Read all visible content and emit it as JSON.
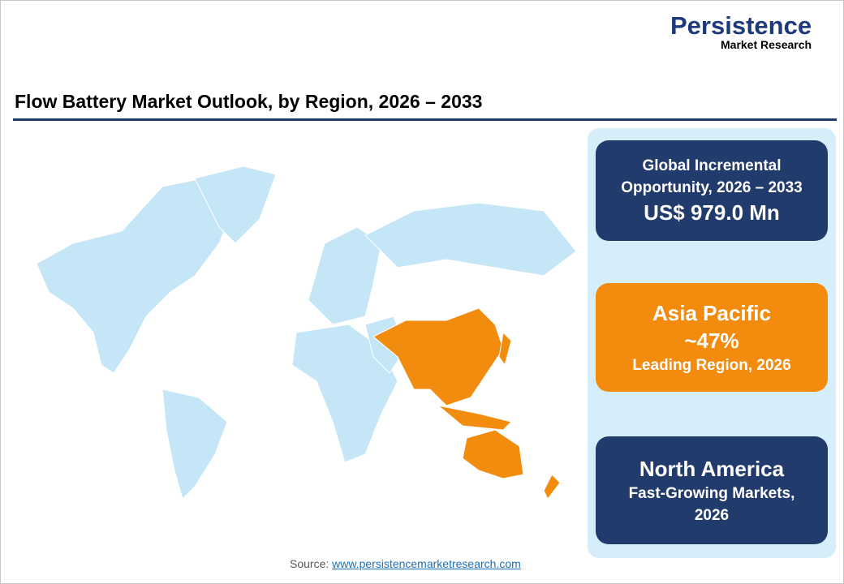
{
  "logo": {
    "primary": "Persistence",
    "secondary": "Market Research"
  },
  "title": "Flow Battery Market Outlook, by Region, 2026 – 2033",
  "map": {
    "base_color": "#c5e6f7",
    "highlight_color": "#f28c0f",
    "highlighted_region": "Asia Pacific"
  },
  "cards": [
    {
      "line1": "Global Incremental",
      "line2": "Opportunity, 2026 – 2033",
      "value": "US$ 979.0 Mn",
      "color": "#213b6d"
    },
    {
      "region": "Asia Pacific",
      "value": "~47%",
      "caption": "Leading Region, 2026",
      "color": "#f38c0e"
    },
    {
      "region": "North America",
      "caption1": "Fast-Growing Markets,",
      "caption2": "2026",
      "color": "#213b6d"
    }
  ],
  "source": {
    "label": "Source:",
    "link": "www.persistencemarketresearch.com"
  }
}
